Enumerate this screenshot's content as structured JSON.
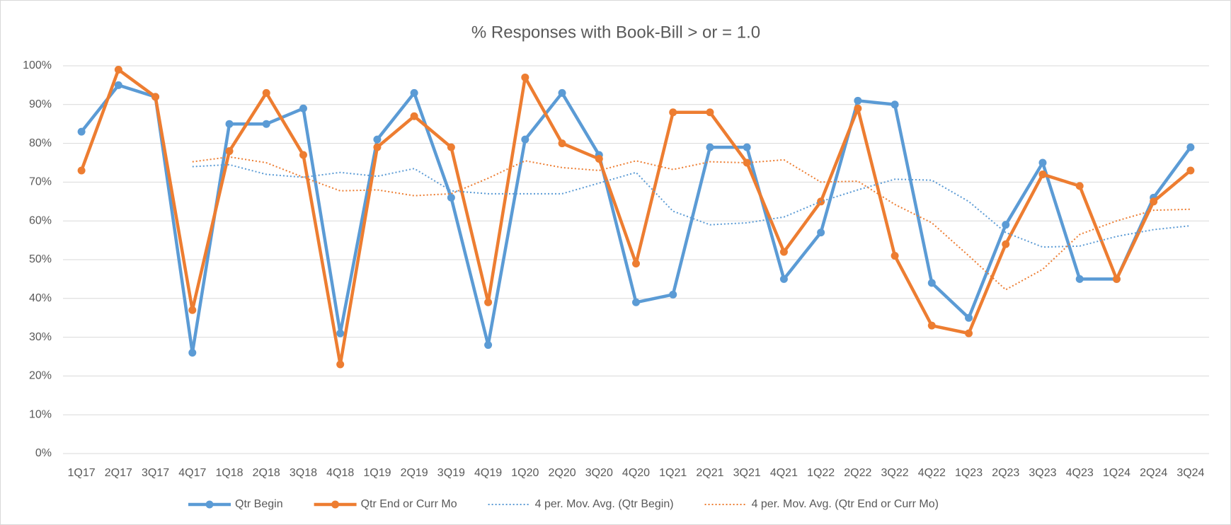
{
  "chart_data": {
    "type": "line",
    "title": "% Responses  with Book-Bill > or = 1.0",
    "categories": [
      "1Q17",
      "2Q17",
      "3Q17",
      "4Q17",
      "1Q18",
      "2Q18",
      "3Q18",
      "4Q18",
      "1Q19",
      "2Q19",
      "3Q19",
      "4Q19",
      "1Q20",
      "2Q20",
      "3Q20",
      "4Q20",
      "1Q21",
      "2Q21",
      "3Q21",
      "4Q21",
      "1Q22",
      "2Q22",
      "3Q22",
      "4Q22",
      "1Q23",
      "2Q23",
      "3Q23",
      "4Q23",
      "1Q24",
      "2Q24",
      "3Q24"
    ],
    "series": [
      {
        "name": "Qtr Begin",
        "color": "#5b9bd5",
        "style": "solid",
        "markers": true,
        "values": [
          83,
          95,
          92,
          26,
          85,
          85,
          89,
          31,
          81,
          93,
          66,
          28,
          81,
          93,
          77,
          39,
          41,
          79,
          79,
          45,
          57,
          91,
          90,
          44,
          35,
          59,
          75,
          45,
          45,
          66,
          79
        ]
      },
      {
        "name": "Qtr End or Curr Mo",
        "color": "#ed7d31",
        "style": "solid",
        "markers": true,
        "values": [
          73,
          99,
          92,
          37,
          78,
          93,
          77,
          23,
          79,
          87,
          79,
          39,
          97,
          80,
          76,
          49,
          88,
          88,
          75,
          52,
          65,
          89,
          51,
          33,
          31,
          54,
          72,
          69,
          45,
          65,
          73
        ]
      },
      {
        "name": "4 per. Mov. Avg. (Qtr Begin)",
        "color": "#5b9bd5",
        "style": "dotted",
        "markers": false,
        "values": [
          null,
          null,
          null,
          74,
          74.5,
          72,
          71.25,
          72.5,
          71.5,
          73.5,
          67.75,
          67,
          67,
          67,
          69.75,
          72.5,
          62.5,
          59,
          59.5,
          61,
          65,
          68,
          70.75,
          70.5,
          65,
          57,
          53.25,
          53.5,
          56,
          57.75,
          58.75
        ]
      },
      {
        "name": "4 per. Mov. Avg. (Qtr End or Curr Mo)",
        "color": "#ed7d31",
        "style": "dotted",
        "markers": false,
        "values": [
          null,
          null,
          null,
          75.25,
          76.5,
          75,
          71.25,
          67.75,
          68,
          66.5,
          67,
          71,
          75.5,
          73.75,
          73,
          75.5,
          73.25,
          75.25,
          75,
          75.75,
          70,
          70.25,
          64.25,
          59.5,
          51,
          42.25,
          47.5,
          56.5,
          60,
          62.75,
          63
        ]
      }
    ],
    "ylim": [
      0,
      100
    ],
    "yticks": [
      {
        "value": 0,
        "label": "0%"
      },
      {
        "value": 10,
        "label": "10%"
      },
      {
        "value": 20,
        "label": "20%"
      },
      {
        "value": 30,
        "label": "30%"
      },
      {
        "value": 40,
        "label": "40%"
      },
      {
        "value": 50,
        "label": "50%"
      },
      {
        "value": 60,
        "label": "60%"
      },
      {
        "value": 70,
        "label": "70%"
      },
      {
        "value": 80,
        "label": "80%"
      },
      {
        "value": 90,
        "label": "90%"
      },
      {
        "value": 100,
        "label": "100%"
      }
    ],
    "grid": true,
    "legend": "bottom"
  }
}
